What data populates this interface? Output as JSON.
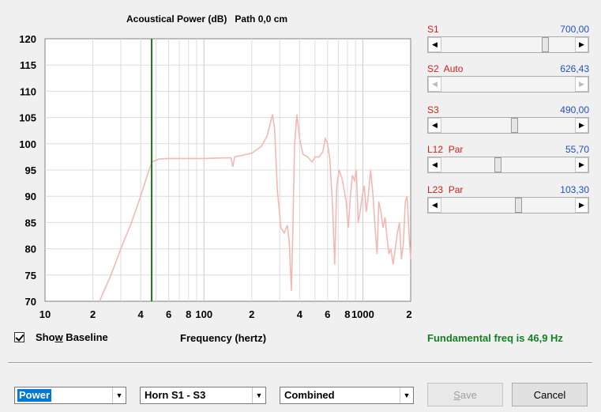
{
  "chart_data": {
    "type": "line",
    "title": "Acoustical Power (dB)   Path 0,0 cm",
    "xlabel": "Frequency (hertz)",
    "ylabel": "",
    "x_scale": "log",
    "xlim": [
      10,
      2000
    ],
    "ylim": [
      70,
      120
    ],
    "y_ticks": [
      "120",
      "115",
      "110",
      "105",
      "100",
      "95",
      "90",
      "85",
      "80",
      "75",
      "70"
    ],
    "x_ticks": [
      "10",
      "2",
      "4",
      "6",
      "8",
      "100",
      "2",
      "4",
      "6",
      "8",
      "1000",
      "2"
    ],
    "grid": true,
    "marker_frequency": 46.9,
    "series": [
      {
        "color": "#f4b8b4",
        "points": [
          [
            22,
            70
          ],
          [
            26,
            75
          ],
          [
            30,
            80
          ],
          [
            35,
            85
          ],
          [
            40,
            90
          ],
          [
            44,
            94
          ],
          [
            47,
            96.5
          ],
          [
            52,
            97.1
          ],
          [
            60,
            97.2
          ],
          [
            80,
            97.2
          ],
          [
            100,
            97.2
          ],
          [
            130,
            97.3
          ],
          [
            148,
            97.3
          ],
          [
            152,
            95.6
          ],
          [
            156,
            97.5
          ],
          [
            175,
            97.8
          ],
          [
            200,
            98.2
          ],
          [
            230,
            99.5
          ],
          [
            250,
            101.5
          ],
          [
            270,
            105.6
          ],
          [
            278,
            103
          ],
          [
            290,
            91
          ],
          [
            305,
            84
          ],
          [
            320,
            83
          ],
          [
            335,
            84.5
          ],
          [
            345,
            81
          ],
          [
            355,
            72
          ],
          [
            362,
            82
          ],
          [
            372,
            100
          ],
          [
            385,
            105.6
          ],
          [
            400,
            101
          ],
          [
            420,
            98
          ],
          [
            450,
            97.5
          ],
          [
            480,
            96.5
          ],
          [
            500,
            97.5
          ],
          [
            530,
            97.5
          ],
          [
            560,
            98.5
          ],
          [
            580,
            101
          ],
          [
            600,
            100
          ],
          [
            620,
            97
          ],
          [
            645,
            88
          ],
          [
            665,
            77
          ],
          [
            685,
            92
          ],
          [
            710,
            95
          ],
          [
            745,
            93
          ],
          [
            785,
            89
          ],
          [
            810,
            84
          ],
          [
            835,
            90
          ],
          [
            860,
            94
          ],
          [
            885,
            93
          ],
          [
            910,
            95
          ],
          [
            935,
            85
          ],
          [
            960,
            87
          ],
          [
            990,
            90
          ],
          [
            1020,
            92
          ],
          [
            1050,
            87
          ],
          [
            1080,
            90
          ],
          [
            1120,
            95
          ],
          [
            1160,
            90
          ],
          [
            1200,
            83
          ],
          [
            1230,
            79
          ],
          [
            1260,
            89
          ],
          [
            1300,
            87
          ],
          [
            1340,
            84
          ],
          [
            1380,
            86
          ],
          [
            1420,
            82
          ],
          [
            1460,
            79
          ],
          [
            1500,
            80
          ],
          [
            1550,
            77
          ],
          [
            1600,
            80
          ],
          [
            1650,
            83
          ],
          [
            1700,
            85
          ],
          [
            1750,
            78
          ],
          [
            1800,
            81
          ],
          [
            1850,
            89
          ],
          [
            1900,
            90
          ],
          [
            1950,
            83
          ],
          [
            2000,
            78
          ]
        ]
      }
    ]
  },
  "sliders": [
    {
      "name": "S1",
      "value": "700,00",
      "position": 0.8,
      "enabled": true
    },
    {
      "name": "S2  Auto",
      "value": "626,43",
      "position": null,
      "enabled": false
    },
    {
      "name": "S3",
      "value": "490,00",
      "position": 0.55,
      "enabled": true
    },
    {
      "name": "L12  Par",
      "value": "55,70",
      "position": 0.42,
      "enabled": true
    },
    {
      "name": "L23  Par",
      "value": "103,30",
      "position": 0.58,
      "enabled": true
    }
  ],
  "show_baseline": {
    "label_pre": "Sho",
    "label_accel": "w",
    "label_post": " Baseline",
    "checked": true
  },
  "fundamental_text": "Fundamental freq is 46,9 Hz",
  "combos": {
    "mode": "Power",
    "horn": "Horn S1 - S3",
    "view": "Combined"
  },
  "buttons": {
    "save_accel": "S",
    "save_rest": "ave",
    "cancel": "Cancel"
  },
  "colors": {
    "curve": "#f4b8b4",
    "marker": "#1a7a1a",
    "slider_name": "#d0201c",
    "slider_value": "#1f4fc8",
    "fundamental": "#128020"
  },
  "icons": {
    "arrow_left": "◀",
    "arrow_right": "▶",
    "arrow_down": "▼"
  }
}
